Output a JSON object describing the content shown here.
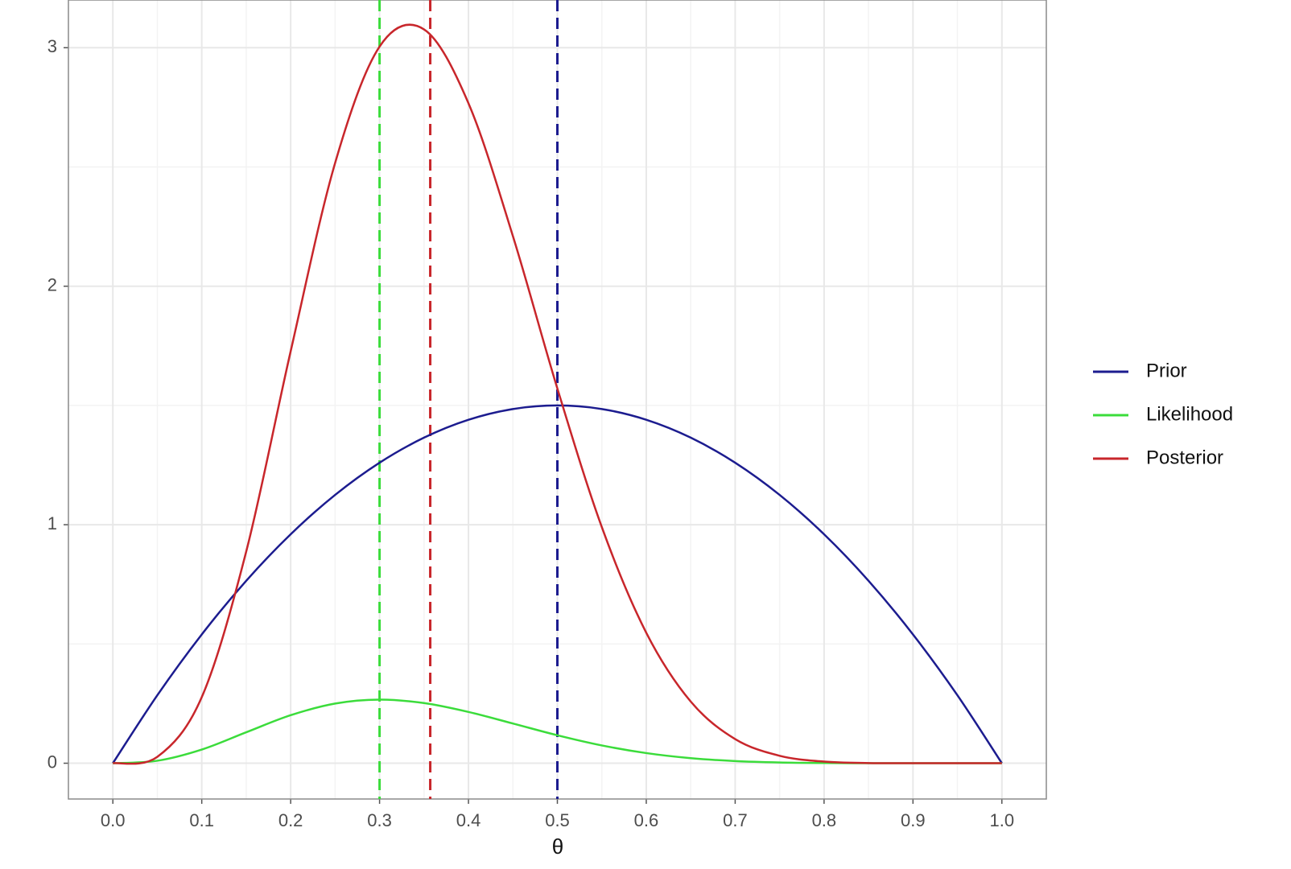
{
  "chart_data": {
    "type": "line",
    "x_label": "θ",
    "x": [
      0,
      0.05,
      0.1,
      0.15,
      0.2,
      0.25,
      0.3,
      0.35,
      0.4,
      0.45,
      0.5,
      0.55,
      0.6,
      0.65,
      0.7,
      0.75,
      0.8,
      0.85,
      0.9,
      0.95,
      1
    ],
    "series": [
      {
        "name": "Prior",
        "color": "#1c1c8f",
        "values": [
          0,
          0.285,
          0.54,
          0.765,
          0.96,
          1.125,
          1.26,
          1.365,
          1.44,
          1.485,
          1.5,
          1.485,
          1.44,
          1.365,
          1.26,
          1.125,
          0.96,
          0.765,
          0.54,
          0.285,
          0
        ]
      },
      {
        "name": "Likelihood",
        "color": "#3bdc3b",
        "values": [
          0,
          0.0105,
          0.0574,
          0.1298,
          0.2013,
          0.2503,
          0.2668,
          0.2522,
          0.215,
          0.1665,
          0.1172,
          0.0746,
          0.0425,
          0.0212,
          0.009,
          0.0031,
          0.0008,
          0.0001,
          0,
          0,
          0
        ]
      },
      {
        "name": "Posterior",
        "color": "#c8262b",
        "values": [
          0,
          0.0267,
          0.277,
          0.8875,
          1.7272,
          2.5167,
          3.0045,
          3.0768,
          2.767,
          2.2098,
          1.5712,
          0.9901,
          0.547,
          0.2586,
          0.1013,
          0.0312,
          0.0069,
          0.0007,
          0,
          0,
          0
        ]
      }
    ],
    "vlines": [
      {
        "x": 0.3,
        "color": "#3bdc3b"
      },
      {
        "x": 0.357,
        "color": "#c8262b"
      },
      {
        "x": 0.5,
        "color": "#1c1c8f"
      }
    ],
    "xlim": [
      -0.05,
      1.05
    ],
    "xticks": [
      {
        "value": 0,
        "label": "0.0"
      },
      0.1,
      0.2,
      0.3,
      0.4,
      0.5,
      0.6,
      0.7,
      0.8,
      0.9,
      {
        "value": 1,
        "label": "1.0"
      }
    ],
    "ylim": [
      -0.15,
      3.2
    ],
    "yticks": [
      0,
      1,
      2,
      3
    ],
    "grid": true,
    "legend": "right"
  }
}
